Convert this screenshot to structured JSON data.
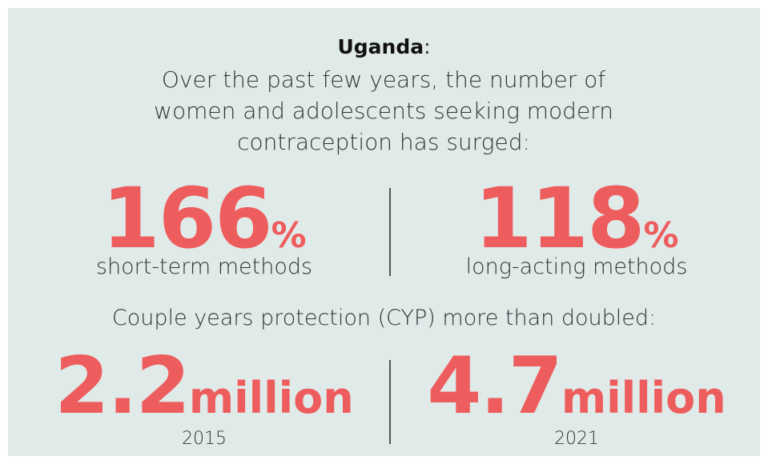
{
  "heading": {
    "country": "Uganda",
    "punctuation": ":"
  },
  "intro": "Over the past few years, the number of women and adolescents seeking modern contraception has surged:",
  "methods": [
    {
      "number": 166,
      "unit": "%",
      "label": "short-term methods"
    },
    {
      "number": 118,
      "unit": "%",
      "label": "long-acting methods"
    }
  ],
  "cyp_intro": "Couple years protection (CYP) more than doubled:",
  "cyp": [
    {
      "number": 2.2,
      "unit": "million",
      "year": 2015
    },
    {
      "number": 4.7,
      "unit": "million",
      "year": 2021
    }
  ]
}
